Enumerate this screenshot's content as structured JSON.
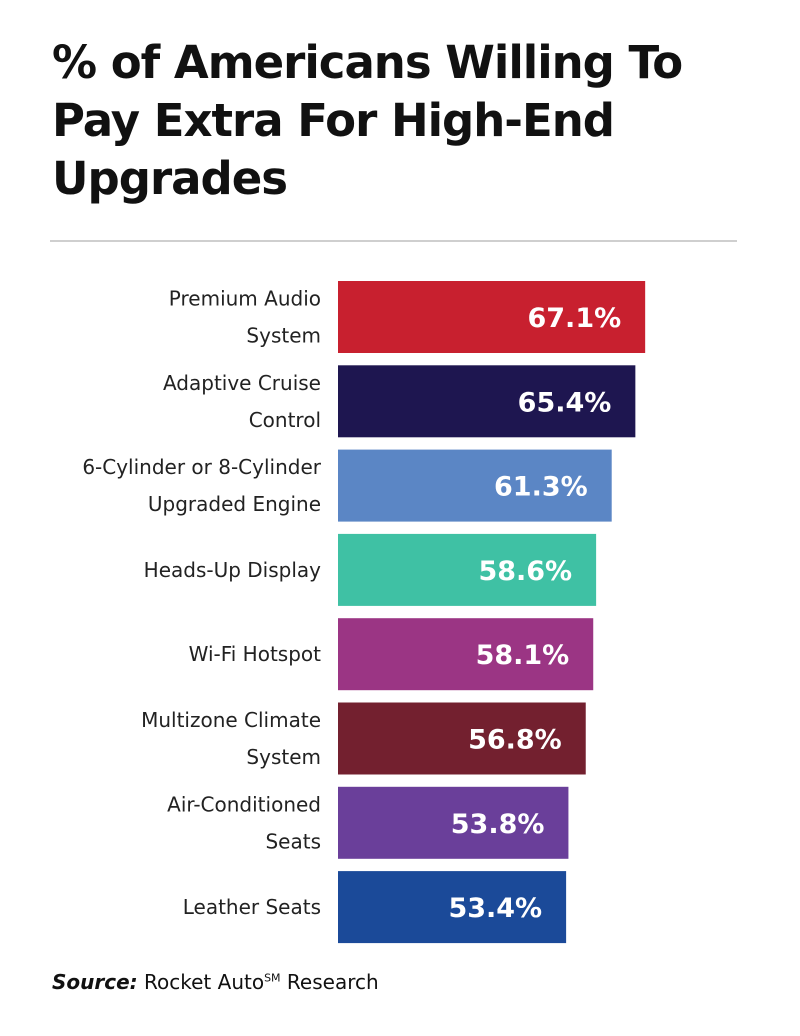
{
  "chart_data": {
    "type": "bar",
    "orientation": "horizontal",
    "title": "% of Americans Willing To Pay Extra For High-End Upgrades",
    "categories": [
      [
        "Premium Audio",
        "System"
      ],
      [
        "Adaptive Cruise",
        "Control"
      ],
      [
        "6-Cylinder or 8-Cylinder",
        "Upgraded Engine"
      ],
      [
        "Heads-Up Display"
      ],
      [
        "Wi-Fi Hotspot"
      ],
      [
        "Multizone Climate",
        "System"
      ],
      [
        "Air-Conditioned",
        "Seats"
      ],
      [
        "Leather Seats"
      ]
    ],
    "values": [
      67.1,
      65.4,
      61.3,
      58.6,
      58.1,
      56.8,
      53.8,
      53.4
    ],
    "data_labels": [
      "67.1%",
      "65.4%",
      "61.3%",
      "58.6%",
      "58.1%",
      "56.8%",
      "53.8%",
      "53.4%"
    ],
    "colors": [
      "#c8202f",
      "#1e1650",
      "#5b86c5",
      "#3fc1a4",
      "#9b3584",
      "#73202f",
      "#6a3f9a",
      "#1b4a99"
    ],
    "xlabel": "",
    "ylabel": "",
    "grid": false
  },
  "source": {
    "label": "Source:",
    "text": "Rocket Auto",
    "superscript": "SM",
    "suffix": " Research"
  }
}
